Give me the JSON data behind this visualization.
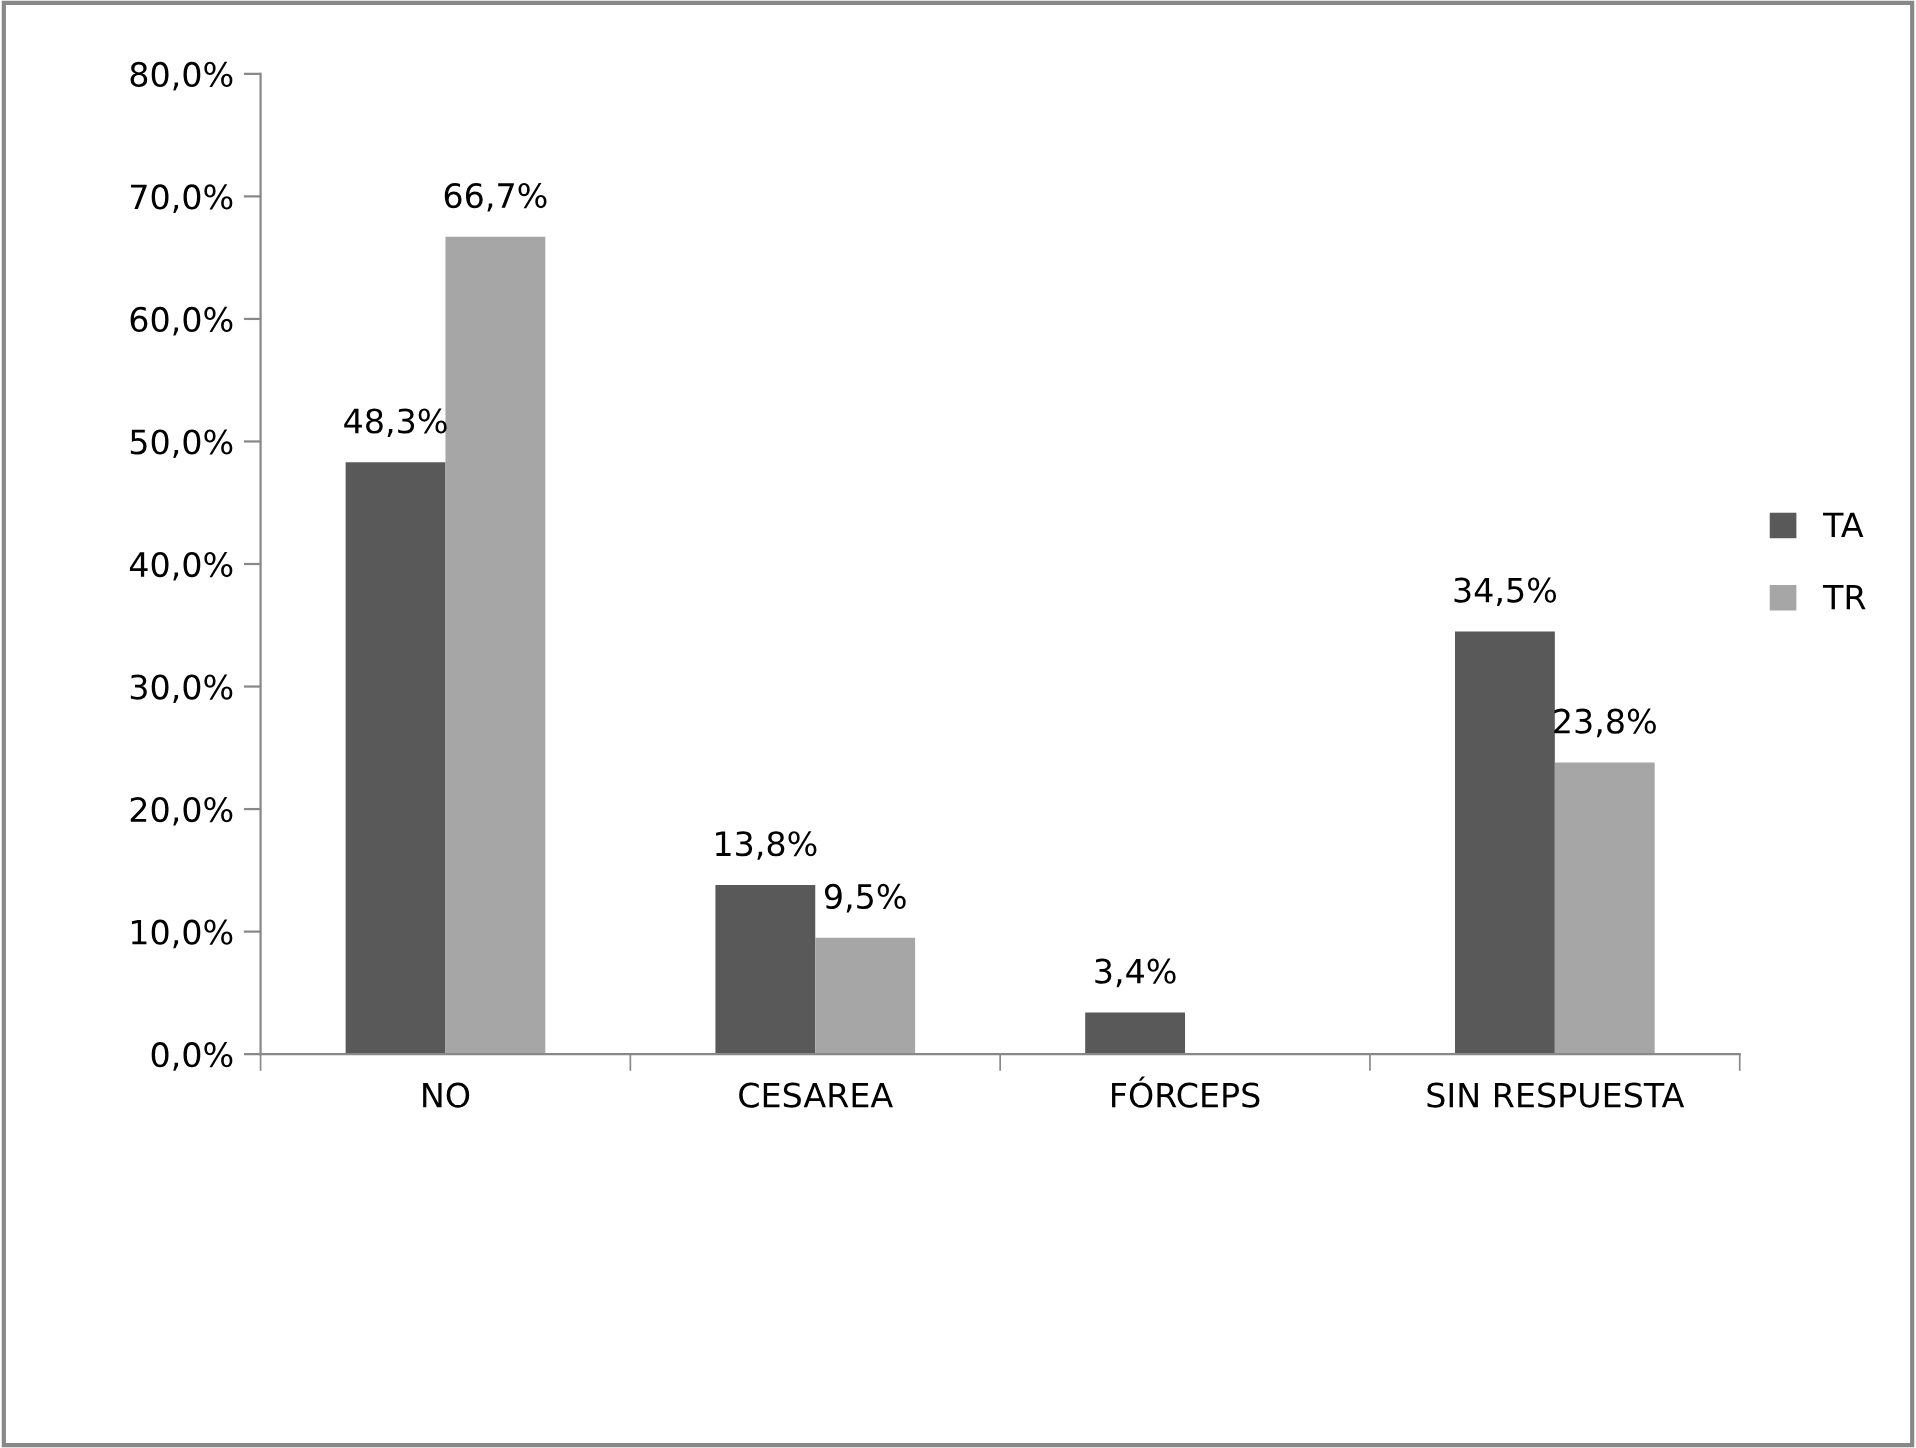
{
  "chart_data": {
    "type": "bar",
    "categories": [
      "NO",
      "CESAREA",
      "FÓRCEPS",
      "SIN RESPUESTA"
    ],
    "series": [
      {
        "name": "TA",
        "color": "#595959",
        "values": [
          48.3,
          13.8,
          3.4,
          34.5
        ],
        "value_labels": [
          "48,3%",
          "13,8%",
          "3,4%",
          "34,5%"
        ]
      },
      {
        "name": "TR",
        "color": "#a6a6a6",
        "values": [
          66.7,
          9.5,
          null,
          23.8
        ],
        "value_labels": [
          "66,7%",
          "9,5%",
          null,
          "23,8%"
        ]
      }
    ],
    "ylim": [
      0,
      80
    ],
    "yticks": [
      {
        "value": 0,
        "label": "0,0%"
      },
      {
        "value": 10,
        "label": "10,0%"
      },
      {
        "value": 20,
        "label": "20,0%"
      },
      {
        "value": 30,
        "label": "30,0%"
      },
      {
        "value": 40,
        "label": "40,0%"
      },
      {
        "value": 50,
        "label": "50,0%"
      },
      {
        "value": 60,
        "label": "60,0%"
      },
      {
        "value": 70,
        "label": "70,0%"
      },
      {
        "value": 80,
        "label": "80,0%"
      }
    ],
    "grid": false,
    "legend": "right"
  }
}
